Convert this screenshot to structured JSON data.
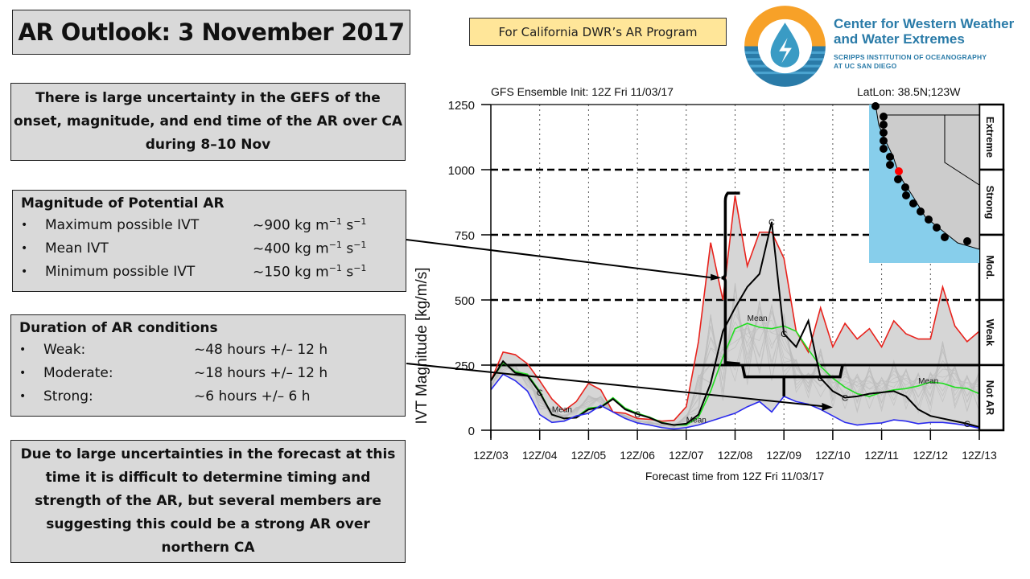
{
  "title": "AR Outlook: 3 November 2017",
  "program_label": "For California DWR’s AR Program",
  "organization": {
    "name_line1": "Center for Western Weather",
    "name_line2": "and Water Extremes",
    "sub_line1": "SCRIPPS INSTITUTION OF OCEANOGRAPHY",
    "sub_line2": "AT UC SAN DIEGO",
    "logo_icon": "water-drop-lightning-logo",
    "colors": {
      "orange": "#f7a128",
      "blue": "#2a7ba8",
      "teal": "#3a9bc4"
    }
  },
  "summary": "There is large uncertainty in the GEFS of the onset, magnitude, and end time of the AR over CA during 8–10 Nov",
  "magnitude": {
    "heading": "Magnitude of Potential AR",
    "items": [
      {
        "label": "Maximum possible IVT",
        "value": "~900 kg m",
        "exp1": "−1",
        "unit2": " s",
        "exp2": "−1"
      },
      {
        "label": "Mean IVT",
        "value": "~400 kg m",
        "exp1": "−1",
        "unit2": " s",
        "exp2": "−1"
      },
      {
        "label": "Minimum possible IVT",
        "value": "~150 kg m",
        "exp1": "−1",
        "unit2": " s",
        "exp2": "−1"
      }
    ]
  },
  "duration": {
    "heading": "Duration of AR conditions",
    "items": [
      {
        "label": "Weak:",
        "value": "~48 hours +/– 12 h"
      },
      {
        "label": "Moderate:",
        "value": "~18 hours +/– 12 h"
      },
      {
        "label": "Strong:",
        "value": "~6 hours +/– 6 h"
      }
    ]
  },
  "conclusion": "Due to large uncertainties in the forecast at this time it is difficult to determine timing and strength of the AR, but several members are suggesting this could be a strong AR over northern CA",
  "bullet": "•",
  "chart_data": {
    "type": "line",
    "title": "GFS Ensemble Init: 12Z Fri 11/03/17",
    "location": "LatLon: 38.5N;123W",
    "xlabel": "Forecast time from 12Z Fri 11/03/17",
    "ylabel": "IVT Magnitude [kg/m/s]",
    "ylim": [
      0,
      1250
    ],
    "yticks": [
      0,
      250,
      500,
      750,
      1000,
      1250
    ],
    "x_unit": "days from 12Z/03",
    "xlim": [
      0,
      10
    ],
    "xticks": [
      "12Z/03",
      "12Z/04",
      "12Z/05",
      "12Z/06",
      "12Z/07",
      "12Z/08",
      "12Z/09",
      "12Z/10",
      "12Z/11",
      "12Z/12",
      "12Z/13"
    ],
    "thresholds": [
      250,
      500,
      750,
      1000
    ],
    "categories_right": [
      "Extreme",
      "Strong",
      "Mod.",
      "Weak",
      "Not AR"
    ],
    "category_ranges": [
      [
        1000,
        1250
      ],
      [
        750,
        1000
      ],
      [
        500,
        750
      ],
      [
        250,
        500
      ],
      [
        0,
        250
      ]
    ],
    "series": [
      {
        "name": "Max",
        "color": "#e8221c",
        "x": [
          0,
          0.25,
          0.5,
          0.75,
          1,
          1.25,
          1.5,
          1.75,
          2,
          2.25,
          2.5,
          2.75,
          3,
          3.25,
          3.5,
          3.75,
          4,
          4.25,
          4.5,
          4.75,
          5,
          5.25,
          5.5,
          5.75,
          6,
          6.25,
          6.5,
          6.75,
          7,
          7.25,
          7.5,
          7.75,
          8,
          8.25,
          8.5,
          8.75,
          9,
          9.25,
          9.5,
          9.75,
          10
        ],
        "y": [
          190,
          300,
          290,
          255,
          190,
          120,
          75,
          110,
          180,
          155,
          70,
          65,
          45,
          42,
          35,
          38,
          90,
          340,
          720,
          500,
          900,
          630,
          760,
          760,
          660,
          380,
          300,
          470,
          320,
          410,
          350,
          390,
          320,
          420,
          370,
          350,
          350,
          550,
          400,
          340,
          380
        ]
      },
      {
        "name": "Mean",
        "color": "#22dd22",
        "label": "Mean",
        "x": [
          0,
          0.25,
          0.5,
          0.75,
          1,
          1.25,
          1.5,
          1.75,
          2,
          2.25,
          2.5,
          2.75,
          3,
          3.25,
          3.5,
          3.75,
          4,
          4.25,
          4.5,
          4.75,
          5,
          5.25,
          5.5,
          5.75,
          6,
          6.25,
          6.5,
          6.75,
          7,
          7.25,
          7.5,
          7.75,
          8,
          8.25,
          8.5,
          8.75,
          9,
          9.25,
          9.5,
          9.75,
          10
        ],
        "y": [
          190,
          260,
          225,
          215,
          150,
          60,
          45,
          50,
          85,
          90,
          125,
          85,
          65,
          50,
          30,
          20,
          20,
          50,
          150,
          280,
          390,
          410,
          395,
          390,
          400,
          380,
          310,
          245,
          200,
          165,
          140,
          130,
          145,
          155,
          160,
          170,
          185,
          180,
          165,
          160,
          140
        ]
      },
      {
        "name": "Control",
        "color": "#000000",
        "label": "C",
        "x": [
          0,
          0.25,
          0.5,
          0.75,
          1,
          1.25,
          1.5,
          1.75,
          2,
          2.25,
          2.5,
          2.75,
          3,
          3.25,
          3.5,
          3.75,
          4,
          4.25,
          4.5,
          4.75,
          5,
          5.25,
          5.5,
          5.75,
          6,
          6.25,
          6.5,
          6.75,
          7,
          7.25,
          7.5,
          7.75,
          8,
          8.25,
          8.5,
          8.75,
          9,
          9.25,
          9.5,
          9.75,
          10
        ],
        "y": [
          190,
          265,
          220,
          210,
          145,
          60,
          45,
          48,
          80,
          88,
          120,
          80,
          62,
          48,
          28,
          20,
          25,
          60,
          180,
          380,
          470,
          550,
          600,
          800,
          370,
          320,
          420,
          200,
          150,
          125,
          130,
          140,
          145,
          150,
          130,
          80,
          55,
          45,
          35,
          25,
          12
        ]
      },
      {
        "name": "Min",
        "color": "#2a2aee",
        "x": [
          0,
          0.25,
          0.5,
          0.75,
          1,
          1.25,
          1.5,
          1.75,
          2,
          2.25,
          2.5,
          2.75,
          3,
          3.25,
          3.5,
          3.75,
          4,
          4.25,
          4.5,
          4.75,
          5,
          5.25,
          5.5,
          5.75,
          6,
          6.25,
          6.5,
          6.75,
          7,
          7.25,
          7.5,
          7.75,
          8,
          8.25,
          8.5,
          8.75,
          9,
          9.25,
          9.5,
          9.75,
          10
        ],
        "y": [
          155,
          215,
          190,
          150,
          60,
          30,
          35,
          55,
          65,
          95,
          70,
          45,
          28,
          20,
          10,
          5,
          10,
          20,
          35,
          50,
          65,
          90,
          110,
          70,
          130,
          110,
          100,
          80,
          55,
          30,
          20,
          25,
          28,
          40,
          35,
          25,
          30,
          30,
          25,
          18,
          8
        ]
      }
    ],
    "annotations": [
      {
        "type": "arrow",
        "from_text": "Magnitude of Potential AR",
        "note": "brace spanning ~250–900 kg/m/s"
      },
      {
        "type": "arrow",
        "from_text": "Duration of AR conditions",
        "note": "brace spanning ~12Z/08–12Z/10"
      }
    ],
    "inset_map": {
      "label": "California coast with forecast points",
      "highlight_color": "#ff0000",
      "ocean_color": "#87ceeb",
      "land_color": "#cccccc"
    },
    "grid": "vertical dotted at day ticks; dashed horizontal at thresholds"
  }
}
